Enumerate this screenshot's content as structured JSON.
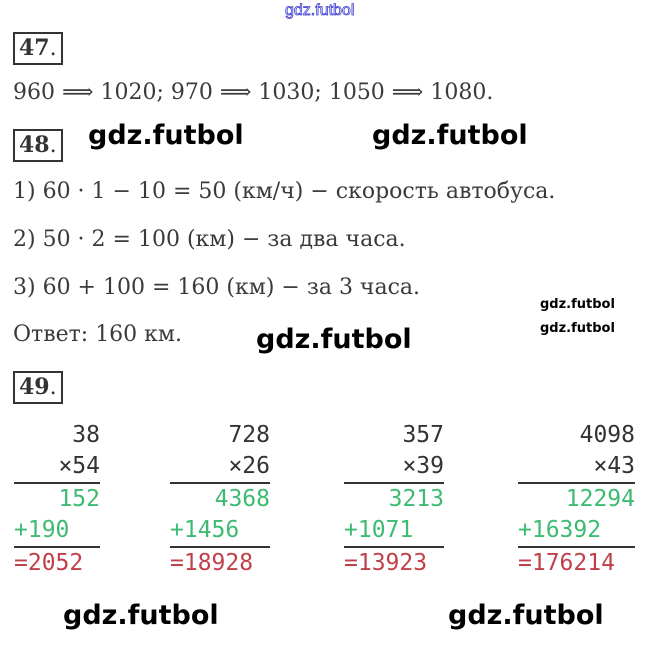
{
  "watermark_top": "gdz.futbol",
  "watermarks": [
    "gdz.futbol",
    "gdz.futbol",
    "gdz.futbol",
    "gdz.futbol",
    "gdz.futbol",
    "gdz.futbol",
    "gdz.futbol"
  ],
  "task47": {
    "number": "47",
    "text": "960 ⟹ 1020;  970 ⟹ 1030;  1050 ⟹ 1080."
  },
  "task48": {
    "number": "48",
    "lines": [
      "1) 60 · 1 − 10 = 50 (км/ч) − скорость автобуса.",
      "2) 50 · 2 = 100 (км) − за два часа.",
      "3) 60 + 100 = 160 (км) − за 3 часа."
    ],
    "answer": "Ответ: 160 км."
  },
  "task49": {
    "number": "49",
    "columns": [
      {
        "a": "38",
        "b": "×54",
        "p1": "152",
        "p2": "+190",
        "result": "=2052"
      },
      {
        "a": "728",
        "b": "×26",
        "p1": "4368",
        "p2": "+1456",
        "result": "=18928"
      },
      {
        "a": "357",
        "b": "×39",
        "p1": "3213",
        "p2": "+1071",
        "result": "=13923"
      },
      {
        "a": "4098",
        "b": "×43",
        "p1": "12294",
        "p2": "+16392",
        "result": "=176214"
      }
    ]
  },
  "colors": {
    "partial": "#3dbb72",
    "result": "#c0404a",
    "watermark_top": "#3a3ad0"
  }
}
